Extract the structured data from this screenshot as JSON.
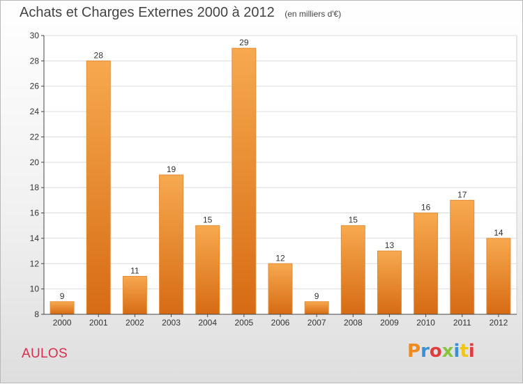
{
  "chart_data": {
    "type": "bar",
    "title": "Achats et Charges Externes 2000 à 2012",
    "subtitle": "(en milliers d'€)",
    "categories": [
      "2000",
      "2001",
      "2002",
      "2003",
      "2004",
      "2005",
      "2006",
      "2007",
      "2008",
      "2009",
      "2010",
      "2011",
      "2012"
    ],
    "values": [
      9,
      28,
      11,
      19,
      15,
      29,
      12,
      9,
      15,
      13,
      16,
      17,
      14
    ],
    "ylim": [
      8,
      30
    ],
    "yticks": [
      8,
      10,
      12,
      14,
      16,
      18,
      20,
      22,
      24,
      26,
      28,
      30
    ],
    "grid": true,
    "colors": {
      "bar_light": "#f7a94e",
      "bar_dark": "#d66b14",
      "bar_outline": "#e38d3a"
    }
  },
  "footer": {
    "town": "AULOS",
    "logo_letters": [
      "P",
      "r",
      "o",
      "x",
      "i",
      "t",
      "i"
    ],
    "logo_colors": [
      "#f08a1c",
      "#3a8fd6",
      "#e23b3b",
      "#8ac43f",
      "#3a8fd6",
      "#f3c316",
      "#e23b3b"
    ]
  }
}
